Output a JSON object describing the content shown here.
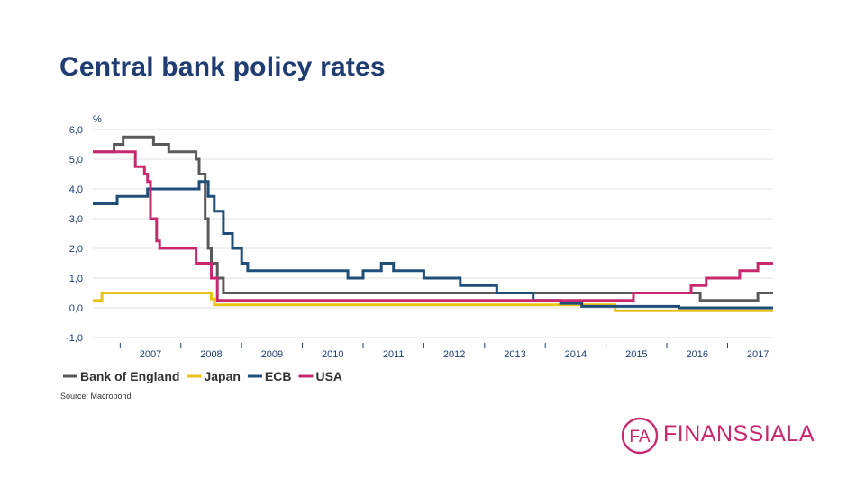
{
  "slide": {
    "title": "Central bank policy rates"
  },
  "logo": {
    "monogram": "FA",
    "text": "FINANSSIALA",
    "color": "#c8286e"
  },
  "chart_data": {
    "type": "line",
    "title": "",
    "unit_label": "%",
    "ylim": [
      -1.0,
      6.0
    ],
    "y_ticks": [
      6.0,
      5.0,
      4.0,
      3.0,
      2.0,
      1.0,
      0.0,
      -1.0
    ],
    "y_tick_labels": [
      "6,0",
      "5,0",
      "4,0",
      "3,0",
      "2,0",
      "1,0",
      "0,0",
      "-1,0"
    ],
    "xlim": [
      2006.55,
      2017.75
    ],
    "x_tick_labels": [
      "2007",
      "2008",
      "2009",
      "2010",
      "2011",
      "2012",
      "2013",
      "2014",
      "2015",
      "2016",
      "2017"
    ],
    "grid": true,
    "legend_position": "bottom-left",
    "source": "Source: Macrobond",
    "series": [
      {
        "name": "Bank of England",
        "color": "#5a5a5a",
        "step": true,
        "x": [
          2006.55,
          2006.85,
          2006.9,
          2007.05,
          2007.35,
          2007.55,
          2007.8,
          2008.25,
          2008.3,
          2008.4,
          2008.45,
          2008.5,
          2008.55,
          2008.6,
          2008.7,
          2008.75,
          2009.0,
          2016.55,
          2017.5,
          2017.75
        ],
        "y": [
          5.25,
          5.25,
          5.5,
          5.75,
          5.75,
          5.5,
          5.25,
          5.0,
          4.5,
          3.0,
          2.0,
          1.5,
          1.5,
          1.0,
          0.5,
          0.5,
          0.5,
          0.25,
          0.5,
          0.5
        ]
      },
      {
        "name": "Japan",
        "color": "#e8c21c",
        "step": true,
        "x": [
          2006.55,
          2006.7,
          2007.15,
          2008.35,
          2008.5,
          2008.55,
          2008.6,
          2015.15,
          2017.75
        ],
        "y": [
          0.25,
          0.5,
          0.5,
          0.5,
          0.3,
          0.1,
          0.1,
          -0.1,
          -0.1
        ]
      },
      {
        "name": "ECB",
        "color": "#1f4e79",
        "step": true,
        "x": [
          2006.55,
          2006.75,
          2006.95,
          2007.45,
          2008.05,
          2008.3,
          2008.45,
          2008.55,
          2008.7,
          2008.85,
          2009.0,
          2009.1,
          2010.75,
          2011.0,
          2011.3,
          2011.5,
          2012.0,
          2012.6,
          2013.2,
          2013.8,
          2014.25,
          2014.6,
          2015.8,
          2016.2,
          2017.75
        ],
        "y": [
          3.5,
          3.5,
          3.75,
          4.0,
          4.0,
          4.25,
          3.75,
          3.25,
          2.5,
          2.0,
          1.5,
          1.25,
          1.0,
          1.25,
          1.5,
          1.25,
          1.0,
          0.75,
          0.5,
          0.25,
          0.15,
          0.05,
          0.05,
          0.0,
          0.0
        ]
      },
      {
        "name": "USA",
        "color": "#c8286e",
        "step": true,
        "x": [
          2006.55,
          2007.2,
          2007.25,
          2007.4,
          2007.45,
          2007.5,
          2007.6,
          2007.65,
          2007.75,
          2007.8,
          2007.9,
          2008.1,
          2008.25,
          2008.5,
          2008.6,
          2008.75,
          2008.95,
          2015.45,
          2016.0,
          2016.4,
          2016.65,
          2017.2,
          2017.5,
          2017.75
        ],
        "y": [
          5.25,
          5.25,
          4.75,
          4.5,
          4.25,
          3.0,
          2.25,
          2.0,
          2.0,
          2.0,
          2.0,
          2.0,
          1.5,
          1.0,
          0.25,
          0.25,
          0.25,
          0.5,
          0.5,
          0.75,
          1.0,
          1.25,
          1.5,
          1.5
        ]
      }
    ]
  }
}
